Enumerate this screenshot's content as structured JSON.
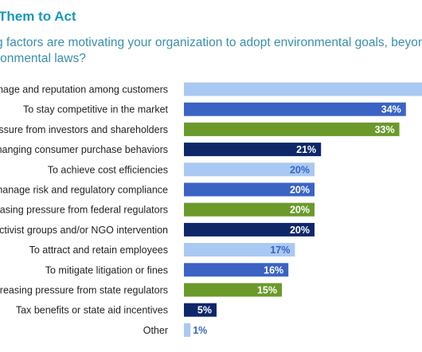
{
  "header": {
    "title": "Them to Act",
    "question_lines": [
      "g factors are motivating your organization to adopt environmental goals, beyond",
      "ronmental laws?"
    ]
  },
  "colors": {
    "light_blue": "#a9c8f2",
    "medium_blue": "#3a63c4",
    "green": "#6b9a2b",
    "navy": "#0e2768",
    "label_text": "#222222",
    "value_text_light_bar": "#3a63c4",
    "value_text_dark_bar": "#ffffff"
  },
  "chart_data": {
    "type": "bar",
    "orientation": "horizontal",
    "categories": [
      "nage and reputation among customers",
      "To stay competitive in the market",
      "essure from investors and shareholders",
      "hanging consumer purchase behaviors",
      "To achieve cost efficiencies",
      "manage risk and regulatory compliance",
      "reasing pressure from federal regulators",
      "ctivist groups and/or NGO intervention",
      "To attract and retain employees",
      "To mitigate litigation or fines",
      "creasing pressure from state regulators",
      "Tax benefits or state aid incentives",
      "Other"
    ],
    "values": [
      38,
      34,
      33,
      21,
      20,
      20,
      20,
      20,
      17,
      16,
      15,
      5,
      1
    ],
    "value_labels": [
      "",
      "34%",
      "33%",
      "21%",
      "20%",
      "20%",
      "20%",
      "20%",
      "17%",
      "16%",
      "15%",
      "5%",
      "1%"
    ],
    "bar_colors": [
      "light_blue",
      "medium_blue",
      "green",
      "navy",
      "light_blue",
      "medium_blue",
      "green",
      "navy",
      "light_blue",
      "medium_blue",
      "green",
      "navy",
      "light_blue"
    ],
    "xlim": [
      0,
      40
    ]
  }
}
